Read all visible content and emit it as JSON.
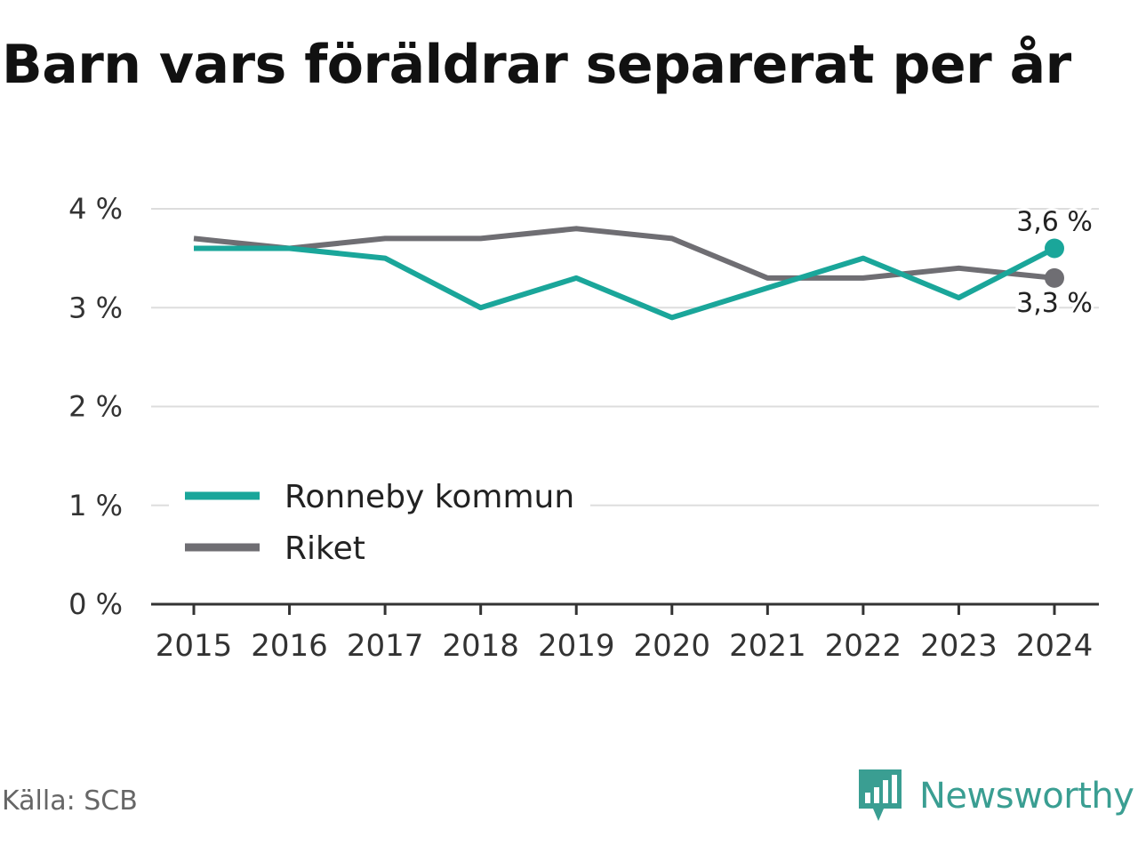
{
  "title": "Barn vars föräldrar separerat per år",
  "source": "Källa: SCB",
  "brand": {
    "name": "Newsworthy",
    "color": "#3a9e92",
    "icon": "newsworthy-logo-icon"
  },
  "chart_data": {
    "type": "line",
    "title": "Barn vars föräldrar separerat per år",
    "xlabel": "",
    "ylabel": "",
    "x": [
      2015,
      2016,
      2017,
      2018,
      2019,
      2020,
      2021,
      2022,
      2023,
      2024
    ],
    "x_tick_labels": [
      "2015",
      "2016",
      "2017",
      "2018",
      "2019",
      "2020",
      "2021",
      "2022",
      "2023",
      "2024"
    ],
    "ylim": [
      0,
      4
    ],
    "y_ticks": [
      0,
      1,
      2,
      3,
      4
    ],
    "y_tick_labels": [
      "0 %",
      "1 %",
      "2 %",
      "3 %",
      "4 %"
    ],
    "grid": "horizontal",
    "legend_position": "bottom-left",
    "series": [
      {
        "name": "Ronneby kommun",
        "color": "#1aa69a",
        "values": [
          3.6,
          3.6,
          3.5,
          3.0,
          3.3,
          2.9,
          3.2,
          3.5,
          3.1,
          3.6
        ],
        "end_label": "3,6 %"
      },
      {
        "name": "Riket",
        "color": "#6f6e73",
        "values": [
          3.7,
          3.6,
          3.7,
          3.7,
          3.8,
          3.7,
          3.3,
          3.3,
          3.4,
          3.3
        ],
        "end_label": "3,3 %"
      }
    ]
  }
}
